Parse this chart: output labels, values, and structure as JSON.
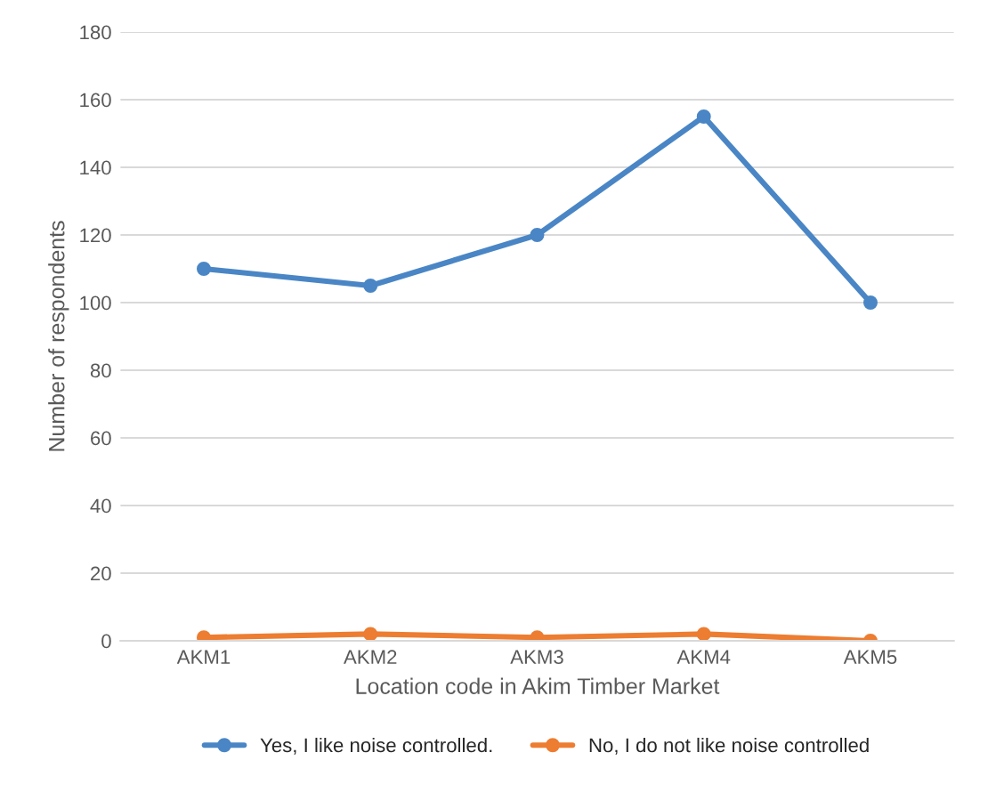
{
  "chart_data": {
    "type": "line",
    "xlabel": "Location code in Akim Timber Market",
    "ylabel": "Number of respondents",
    "categories": [
      "AKM1",
      "AKM2",
      "AKM3",
      "AKM4",
      "AKM5"
    ],
    "series": [
      {
        "name": "Yes, I like noise controlled.",
        "color": "#4a86c5",
        "values": [
          110,
          105,
          120,
          155,
          100
        ]
      },
      {
        "name": "No, I do not like noise controlled",
        "color": "#ed7d31",
        "values": [
          1,
          2,
          1,
          2,
          0
        ]
      }
    ],
    "ylim": [
      0,
      180
    ],
    "yticks": [
      0,
      20,
      40,
      60,
      80,
      100,
      120,
      140,
      160,
      180
    ],
    "grid": "y",
    "legend": "bottom",
    "marker": "circle",
    "line_style": "solid"
  }
}
